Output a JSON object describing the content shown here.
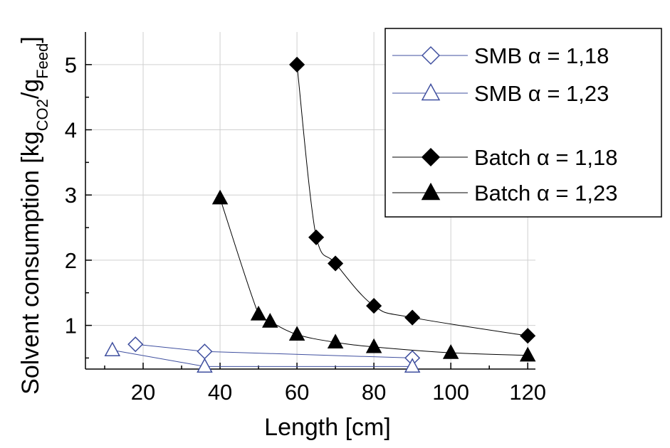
{
  "chart_data": {
    "type": "line",
    "xlabel": "Length [cm]",
    "ylabel": {
      "main": "Solvent consumption [kg",
      "sub1": "CO2",
      "mid": "/g",
      "sub2": "Feed",
      "end": "]"
    },
    "xlim": [
      5,
      122
    ],
    "ylim": [
      0.33,
      5.5
    ],
    "x_ticks": [
      20,
      40,
      60,
      80,
      100,
      120
    ],
    "y_ticks": [
      1,
      2,
      3,
      4,
      5
    ],
    "grid": true,
    "legend_position": "top-right",
    "series": [
      {
        "name": "SMB  α = 1,18",
        "marker": "diamond-open",
        "color": "#3f4f9f",
        "points": [
          [
            18,
            0.71
          ],
          [
            36,
            0.6
          ],
          [
            90,
            0.5
          ]
        ]
      },
      {
        "name": "SMB  α = 1,23",
        "marker": "triangle-open",
        "color": "#3f4f9f",
        "points": [
          [
            12,
            0.62
          ],
          [
            36,
            0.37
          ],
          [
            90,
            0.37
          ]
        ]
      },
      {
        "name": "Batch α = 1,18",
        "marker": "diamond-filled",
        "color": "#000000",
        "points": [
          [
            60,
            5.0
          ],
          [
            65,
            2.35
          ],
          [
            70,
            1.95
          ],
          [
            80,
            1.3
          ],
          [
            90,
            1.12
          ],
          [
            120,
            0.84
          ]
        ]
      },
      {
        "name": "Batch α = 1,23",
        "marker": "triangle-filled",
        "color": "#000000",
        "points": [
          [
            40,
            2.95
          ],
          [
            50,
            1.17
          ],
          [
            53,
            1.06
          ],
          [
            60,
            0.86
          ],
          [
            70,
            0.74
          ],
          [
            80,
            0.67
          ],
          [
            100,
            0.58
          ],
          [
            120,
            0.54
          ]
        ]
      }
    ]
  }
}
